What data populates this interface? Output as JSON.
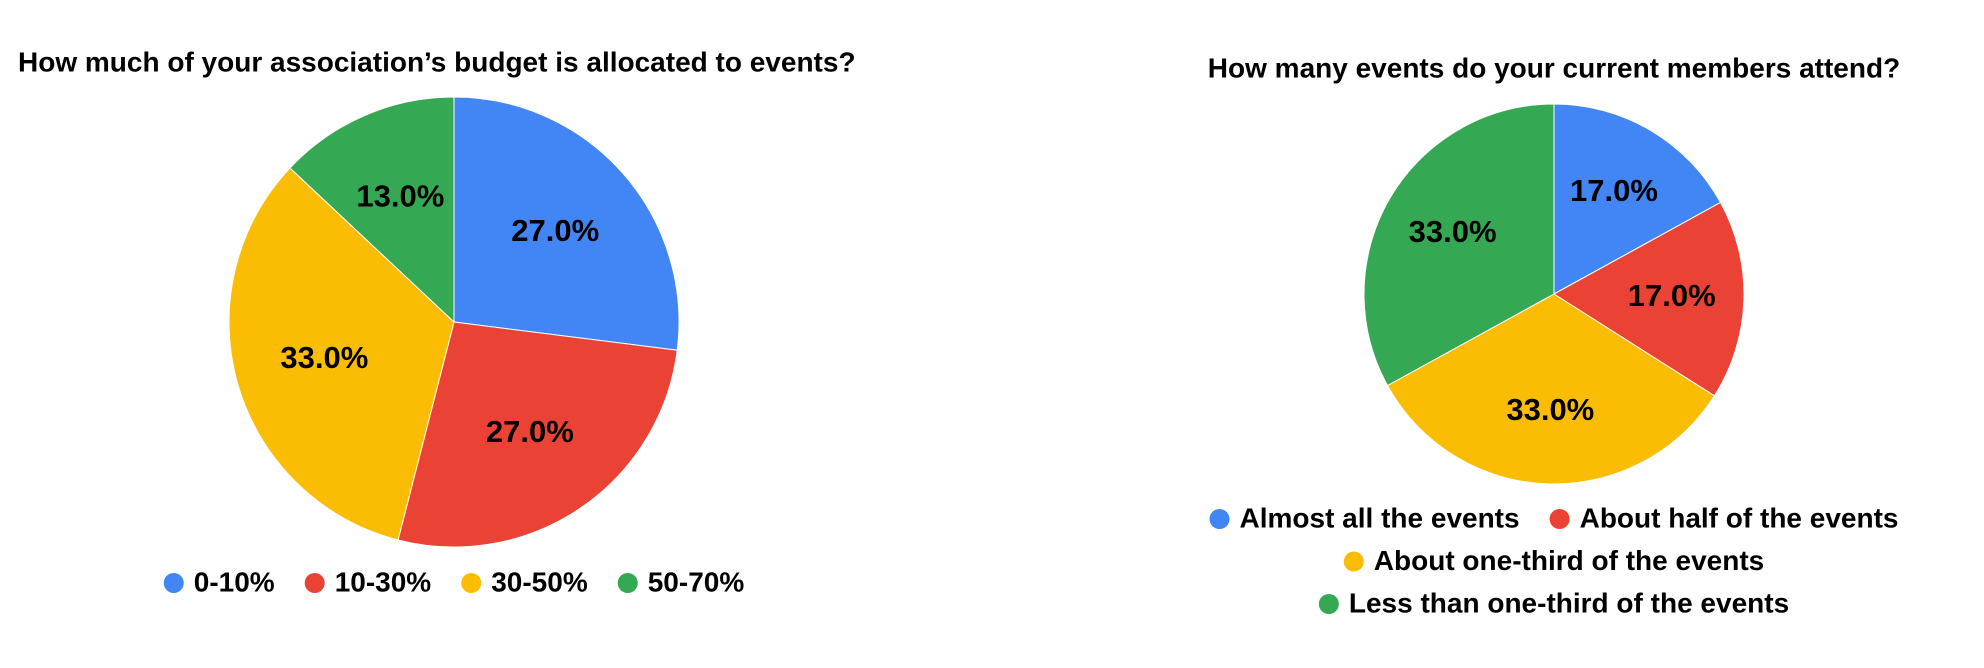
{
  "chart_data": [
    {
      "type": "pie",
      "title": "How much of your association’s budget is allocated to events?",
      "categories": [
        "0-10%",
        "10-30%",
        "30-50%",
        "50-70%"
      ],
      "values": [
        27,
        27,
        33,
        13
      ],
      "value_labels": [
        "27.0%",
        "27.0%",
        "33.0%",
        "13.0%"
      ],
      "colors": [
        "#4285f4",
        "#ea4335",
        "#fbbc04",
        "#34a853"
      ],
      "legend": "bottom"
    },
    {
      "type": "pie",
      "title": "How many events do your current members attend?",
      "categories": [
        "Almost all the events",
        "About half of the events",
        "About one-third of the events",
        "Less than one-third of the events"
      ],
      "values": [
        17,
        17,
        33,
        33
      ],
      "value_labels": [
        "17.0%",
        "17.0%",
        "33.0%",
        "33.0%"
      ],
      "colors": [
        "#4285f4",
        "#ea4335",
        "#fbbc04",
        "#34a853"
      ],
      "legend": "bottom"
    }
  ]
}
